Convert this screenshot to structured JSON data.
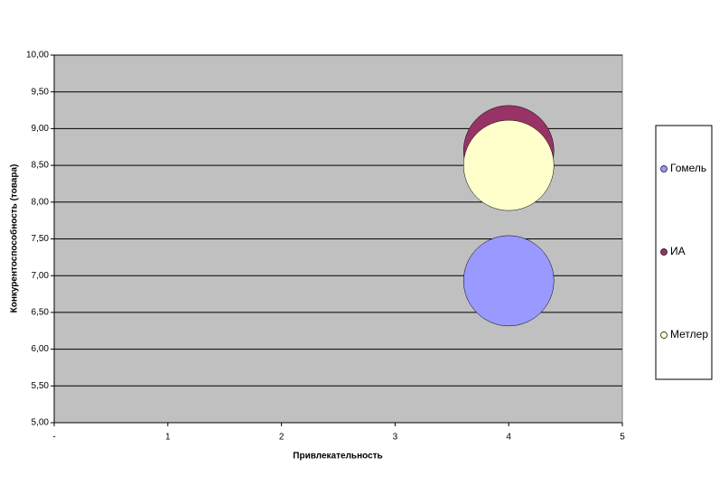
{
  "chart_data": {
    "type": "bubble",
    "x_label": "Привлекательность",
    "y_label": "Конкурентоспособность (товара)",
    "xlim": [
      0,
      5
    ],
    "xticks": [
      {
        "value": 0,
        "label": "-"
      },
      1,
      2,
      3,
      4,
      5
    ],
    "ylim": [
      5,
      10
    ],
    "yticks": [
      {
        "value": 5,
        "label": "5,00"
      },
      {
        "value": 5.5,
        "label": "5,50"
      },
      {
        "value": 6,
        "label": "6,00"
      },
      {
        "value": 6.5,
        "label": "6,50"
      },
      {
        "value": 7,
        "label": "7,00"
      },
      {
        "value": 7.5,
        "label": "7,50"
      },
      {
        "value": 8,
        "label": "8,00"
      },
      {
        "value": 8.5,
        "label": "8,50"
      },
      {
        "value": 9,
        "label": "9,00"
      },
      {
        "value": 9.5,
        "label": "9,50"
      },
      {
        "value": 10,
        "label": "10,00"
      }
    ],
    "grid": true,
    "legend": "right",
    "series": [
      {
        "name": "Гомель",
        "color": "#9999ff",
        "x": [
          4
        ],
        "y": [
          6.93
        ],
        "sizes": [
          1
        ]
      },
      {
        "name": "ИА",
        "color": "#993366",
        "x": [
          4
        ],
        "y": [
          8.7
        ],
        "sizes": [
          1
        ]
      },
      {
        "name": "Метлер",
        "color": "#ffffcc",
        "x": [
          4
        ],
        "y": [
          8.5
        ],
        "sizes": [
          1
        ]
      }
    ]
  }
}
